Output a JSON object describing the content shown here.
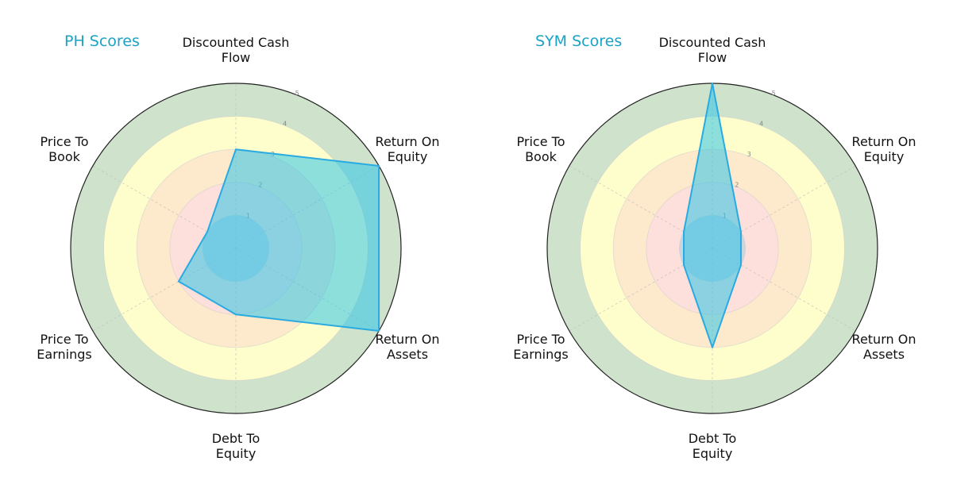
{
  "chart_data": [
    {
      "type": "radar",
      "title": "PH Scores",
      "categories": [
        "Discounted Cash Flow",
        "Return On Equity",
        "Return On Assets",
        "Debt To Equity",
        "Price To Earnings",
        "Price To Book"
      ],
      "values": [
        3,
        5,
        5,
        2,
        2,
        1
      ],
      "rlim": [
        0,
        5
      ],
      "rticks": [
        1,
        2,
        3,
        4,
        5
      ]
    },
    {
      "type": "radar",
      "title": "SYM Scores",
      "categories": [
        "Discounted Cash Flow",
        "Return On Equity",
        "Return On Assets",
        "Debt To Equity",
        "Price To Earnings",
        "Price To Book"
      ],
      "values": [
        5,
        1,
        1,
        3,
        1,
        1
      ],
      "rlim": [
        0,
        5
      ],
      "rticks": [
        1,
        2,
        3,
        4,
        5
      ]
    }
  ],
  "charts": [
    {
      "title": "PH Scores",
      "labels": [
        {
          "line1": "Discounted Cash",
          "line2": "Flow"
        },
        {
          "line1": "Return On",
          "line2": "Equity"
        },
        {
          "line1": "Return On",
          "line2": "Assets"
        },
        {
          "line1": "Debt To",
          "line2": "Equity"
        },
        {
          "line1": "Price To",
          "line2": "Earnings"
        },
        {
          "line1": "Price To",
          "line2": "Book"
        }
      ]
    },
    {
      "title": "SYM Scores",
      "labels": [
        {
          "line1": "Discounted Cash",
          "line2": "Flow"
        },
        {
          "line1": "Return On",
          "line2": "Equity"
        },
        {
          "line1": "Return On",
          "line2": "Assets"
        },
        {
          "line1": "Debt To",
          "line2": "Equity"
        },
        {
          "line1": "Price To",
          "line2": "Earnings"
        },
        {
          "line1": "Price To",
          "line2": "Book"
        }
      ]
    }
  ],
  "colors": {
    "title": "#1ba3c6",
    "band_4_5": "#cfe3cc",
    "band_3_4": "#fefecc",
    "band_2_3": "#fde9cc",
    "band_1_2": "#fde0dc",
    "band_0_1": "#c9d6e0",
    "polygon_fill": "#2ec4e8",
    "polygon_stroke": "#29abe2"
  }
}
